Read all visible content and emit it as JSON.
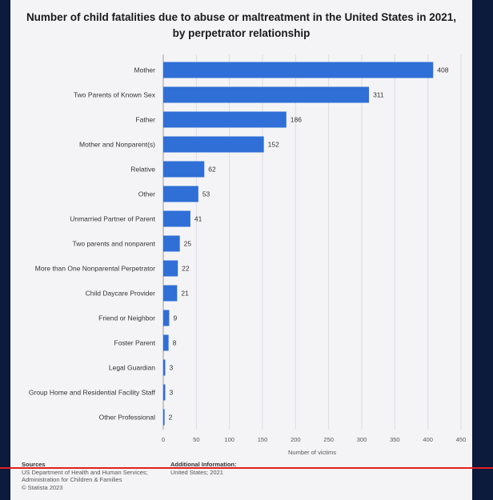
{
  "chart_data": {
    "type": "bar",
    "orientation": "horizontal",
    "title_line1": "Number of child fatalities due to abuse or maltreatment in the United States in 2021,",
    "title_line2": "by perpetrator relationship",
    "xlabel": "Number of victims",
    "ylabel": "",
    "xlim": [
      0,
      450
    ],
    "xticks": [
      0,
      50,
      100,
      150,
      200,
      250,
      300,
      350,
      400,
      450
    ],
    "grid": true,
    "categories": [
      "Mother",
      "Two Parents of Known Sex",
      "Father",
      "Mother and Nonparent(s)",
      "Relative",
      "Other",
      "Unmarried Partner of Parent",
      "Two parents and nonparent",
      "More than One Nonparental Perpetrator",
      "Child Daycare Provider",
      "Friend or Neighbor",
      "Foster Parent",
      "Legal Guardian",
      "Group Home and Residential Facility Staff",
      "Other Professional"
    ],
    "values": [
      408,
      311,
      186,
      152,
      62,
      53,
      41,
      25,
      22,
      21,
      9,
      8,
      3,
      3,
      2
    ],
    "bar_color": "#2f6fd6"
  },
  "footer": {
    "sources_label": "Sources",
    "sources_lines": [
      "US Department of Health and Human Services;",
      "Administration for Children & Families",
      "© Statista 2023"
    ],
    "additional_label": "Additional Information:",
    "additional_text": "United States; 2021"
  }
}
